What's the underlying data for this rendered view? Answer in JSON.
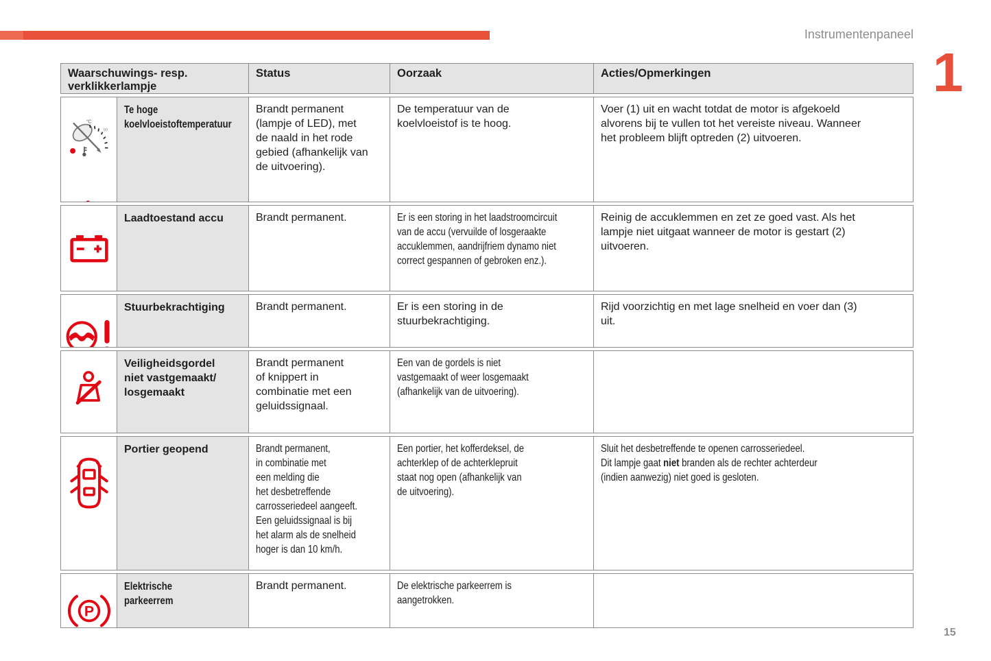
{
  "page": {
    "header_title": "Instrumentenpaneel",
    "chapter_number": "1",
    "page_number": "15"
  },
  "colors": {
    "accent_red": "#e8503a",
    "icon_red": "#e30613",
    "cell_gray": "#e4e4e4",
    "border_gray": "#8c8c8c",
    "muted_text": "#8d8d8d"
  },
  "table": {
    "headers": {
      "warning": "Waarschuwings- resp.\nverklikkerlampje",
      "status": "Status",
      "cause": "Oorzaak",
      "actions": "Acties/Opmerkingen"
    },
    "rows": [
      {
        "icons": [
          "coolant-temperature-gauge-icon",
          "coolant-temperature-warning-icon"
        ],
        "label": "Te hoge\nkoelvloeistoftemperatuur",
        "status": "Brandt permanent\n(lampje of LED), met\nde naald in het rode\ngebied (afhankelijk van\nde uitvoering).",
        "cause": "De temperatuur van de\nkoelvloeistof is te hoog.",
        "actions": "Voer (1) uit en wacht totdat de motor is afgekoeld\nalvorens bij te vullen tot het vereiste niveau. Wanneer\nhet probleem blijft optreden (2) uitvoeren."
      },
      {
        "icons": [
          "battery-charge-warning-icon"
        ],
        "label": "Laadtoestand accu",
        "status": "Brandt permanent.",
        "cause": "Er is een storing in het laadstroomcircuit\nvan de accu (vervuilde of losgeraakte\naccuklemmen, aandrijfriem dynamo niet\ncorrect gespannen of gebroken enz.).",
        "actions": "Reinig de accuklemmen en zet ze goed vast. Als het\nlampje niet uitgaat wanneer de motor is gestart (2)\nuitvoeren."
      },
      {
        "icons": [
          "power-steering-warning-icon"
        ],
        "label": "Stuurbekrachtiging",
        "status": "Brandt permanent.",
        "cause": "Er is een storing in de\nstuurbekrachtiging.",
        "actions": "Rijd voorzichtig en met lage snelheid en voer dan (3)\nuit."
      },
      {
        "icons": [
          "seatbelt-unfastened-icon",
          "seatbelt-occupant-icon"
        ],
        "label": "Veiligheidsgordel\nniet vastgemaakt/\nlosgemaakt",
        "status": "Brandt permanent\nof knippert in\ncombinatie met een\ngeluidssignaal.",
        "cause": "Een van de gordels is niet\nvastgemaakt of weer losgemaakt\n(afhankelijk van de uitvoering).",
        "actions": ""
      },
      {
        "icons": [
          "door-open-warning-icon"
        ],
        "label": "Portier geopend",
        "status": "Brandt permanent,\nin combinatie met\neen melding die\nhet desbetreffende\ncarrosseriedeel aangeeft.\nEen geluidssignaal is bij\nhet alarm als de snelheid\nhoger is dan 10 km/h.",
        "cause": "Een portier, het kofferdeksel, de\nachterklep of de achterklepruit\nstaat nog open (afhankelijk van\nde uitvoering).",
        "actions": "Sluit het desbetreffende te openen carrosseriedeel.\nDit lampje gaat **niet** branden als de rechter achterdeur\n(indien aanwezig) niet goed is gesloten."
      },
      {
        "icons": [
          "electric-parking-brake-icon"
        ],
        "label": "Elektrische\nparkeerrem",
        "status": "Brandt permanent.",
        "cause": "De elektrische parkeerrem is\naangetrokken.",
        "actions": ""
      }
    ]
  }
}
